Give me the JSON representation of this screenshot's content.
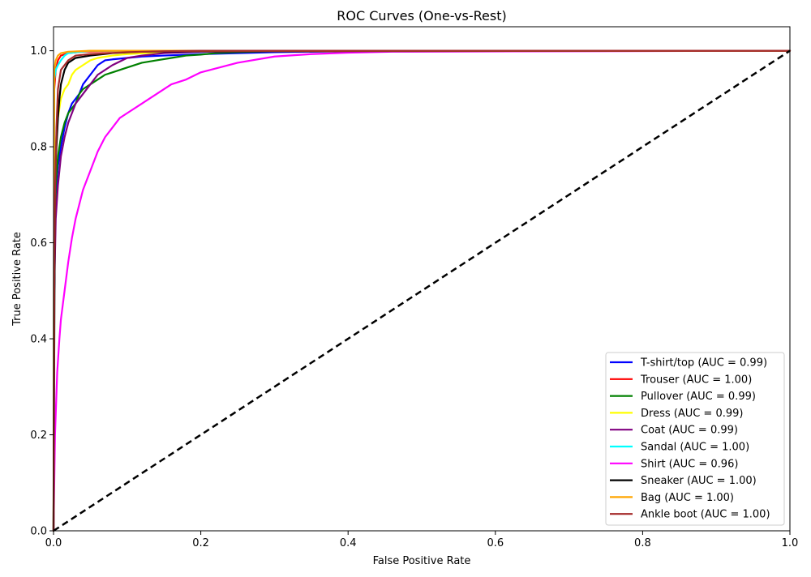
{
  "chart_data": {
    "type": "line",
    "title": "ROC Curves (One-vs-Rest)",
    "xlabel": "False Positive Rate",
    "ylabel": "True Positive Rate",
    "xlim": [
      0.0,
      1.0
    ],
    "ylim": [
      0.0,
      1.05
    ],
    "xticks": [
      0.0,
      0.2,
      0.4,
      0.6,
      0.8,
      1.0
    ],
    "yticks": [
      0.0,
      0.2,
      0.4,
      0.6,
      0.8,
      1.0
    ],
    "xtick_labels": [
      "0.0",
      "0.2",
      "0.4",
      "0.6",
      "0.8",
      "1.0"
    ],
    "ytick_labels": [
      "0.0",
      "0.2",
      "0.4",
      "0.6",
      "0.8",
      "1.0"
    ],
    "grid": false,
    "legend_position": "bottom-right",
    "reference_line": {
      "x": [
        0.0,
        1.0
      ],
      "y": [
        0.0,
        1.0
      ],
      "color": "#000000",
      "style": "dashed"
    },
    "series": [
      {
        "name": "T-shirt/top (AUC = 0.99)",
        "color": "#0000ff",
        "x": [
          0.0,
          0.001,
          0.003,
          0.006,
          0.01,
          0.015,
          0.02,
          0.025,
          0.03,
          0.035,
          0.04,
          0.05,
          0.06,
          0.07,
          0.08,
          0.1,
          0.12,
          0.15,
          0.2,
          0.3,
          0.4,
          1.0
        ],
        "y": [
          0.0,
          0.5,
          0.7,
          0.76,
          0.8,
          0.84,
          0.87,
          0.89,
          0.9,
          0.91,
          0.93,
          0.95,
          0.97,
          0.98,
          0.982,
          0.985,
          0.988,
          0.99,
          0.993,
          0.997,
          0.999,
          1.0
        ]
      },
      {
        "name": "Trouser (AUC = 1.00)",
        "color": "#ff0000",
        "x": [
          0.0,
          0.001,
          0.003,
          0.006,
          0.01,
          0.02,
          0.04,
          0.1,
          1.0
        ],
        "y": [
          0.0,
          0.92,
          0.96,
          0.98,
          0.99,
          0.995,
          0.998,
          1.0,
          1.0
        ]
      },
      {
        "name": "Pullover (AUC = 0.99)",
        "color": "#008000",
        "x": [
          0.0,
          0.001,
          0.003,
          0.006,
          0.01,
          0.015,
          0.02,
          0.025,
          0.03,
          0.035,
          0.04,
          0.05,
          0.06,
          0.07,
          0.08,
          0.09,
          0.1,
          0.12,
          0.14,
          0.16,
          0.18,
          0.2,
          0.22,
          0.25,
          0.3,
          1.0
        ],
        "y": [
          0.0,
          0.6,
          0.72,
          0.78,
          0.82,
          0.85,
          0.87,
          0.88,
          0.89,
          0.91,
          0.92,
          0.93,
          0.94,
          0.95,
          0.955,
          0.96,
          0.965,
          0.975,
          0.98,
          0.985,
          0.99,
          0.992,
          0.995,
          0.997,
          0.999,
          1.0
        ]
      },
      {
        "name": "Dress (AUC = 0.99)",
        "color": "#ffff00",
        "x": [
          0.0,
          0.001,
          0.003,
          0.005,
          0.008,
          0.01,
          0.015,
          0.02,
          0.025,
          0.03,
          0.04,
          0.05,
          0.06,
          0.08,
          0.1,
          0.15,
          0.2,
          1.0
        ],
        "y": [
          0.0,
          0.72,
          0.8,
          0.85,
          0.88,
          0.9,
          0.92,
          0.93,
          0.95,
          0.96,
          0.97,
          0.98,
          0.985,
          0.99,
          0.993,
          0.997,
          0.999,
          1.0
        ]
      },
      {
        "name": "Coat (AUC = 0.99)",
        "color": "#800080",
        "x": [
          0.0,
          0.001,
          0.003,
          0.006,
          0.01,
          0.015,
          0.02,
          0.025,
          0.03,
          0.04,
          0.05,
          0.06,
          0.08,
          0.1,
          0.12,
          0.15,
          0.2,
          0.3,
          1.0
        ],
        "y": [
          0.0,
          0.5,
          0.65,
          0.72,
          0.78,
          0.82,
          0.85,
          0.87,
          0.89,
          0.91,
          0.93,
          0.95,
          0.97,
          0.985,
          0.99,
          0.995,
          0.998,
          0.999,
          1.0
        ]
      },
      {
        "name": "Sandal (AUC = 1.00)",
        "color": "#00ffff",
        "x": [
          0.0,
          0.001,
          0.003,
          0.006,
          0.01,
          0.015,
          0.02,
          0.05,
          1.0
        ],
        "y": [
          0.0,
          0.94,
          0.96,
          0.97,
          0.98,
          0.99,
          0.995,
          1.0,
          1.0
        ]
      },
      {
        "name": "Shirt (AUC = 0.96)",
        "color": "#ff00ff",
        "x": [
          0.0,
          0.002,
          0.005,
          0.008,
          0.01,
          0.015,
          0.02,
          0.025,
          0.03,
          0.035,
          0.04,
          0.05,
          0.06,
          0.07,
          0.08,
          0.09,
          0.1,
          0.12,
          0.14,
          0.16,
          0.18,
          0.2,
          0.25,
          0.3,
          0.35,
          0.4,
          0.46,
          1.0
        ],
        "y": [
          0.0,
          0.2,
          0.33,
          0.4,
          0.44,
          0.5,
          0.56,
          0.61,
          0.65,
          0.68,
          0.71,
          0.75,
          0.79,
          0.82,
          0.84,
          0.86,
          0.87,
          0.89,
          0.91,
          0.93,
          0.94,
          0.955,
          0.975,
          0.988,
          0.993,
          0.996,
          0.998,
          1.0
        ]
      },
      {
        "name": "Sneaker (AUC = 1.00)",
        "color": "#000000",
        "x": [
          0.0,
          0.002,
          0.004,
          0.006,
          0.008,
          0.01,
          0.015,
          0.02,
          0.03,
          0.05,
          0.08,
          0.12,
          0.2,
          1.0
        ],
        "y": [
          0.0,
          0.74,
          0.8,
          0.86,
          0.9,
          0.93,
          0.96,
          0.975,
          0.985,
          0.99,
          0.995,
          0.998,
          0.999,
          1.0
        ]
      },
      {
        "name": "Bag (AUC = 1.00)",
        "color": "#ffa500",
        "x": [
          0.0,
          0.001,
          0.003,
          0.006,
          0.01,
          0.02,
          0.05,
          1.0
        ],
        "y": [
          0.0,
          0.96,
          0.98,
          0.99,
          0.995,
          0.998,
          1.0,
          1.0
        ]
      },
      {
        "name": "Ankle boot (AUC = 1.00)",
        "color": "#a52a2a",
        "x": [
          0.0,
          0.001,
          0.002,
          0.004,
          0.006,
          0.01,
          0.02,
          0.03,
          0.05,
          0.1,
          0.15,
          0.2,
          1.0
        ],
        "y": [
          0.0,
          0.52,
          0.7,
          0.84,
          0.92,
          0.96,
          0.98,
          0.99,
          0.993,
          0.997,
          0.999,
          1.0,
          1.0
        ]
      }
    ]
  }
}
